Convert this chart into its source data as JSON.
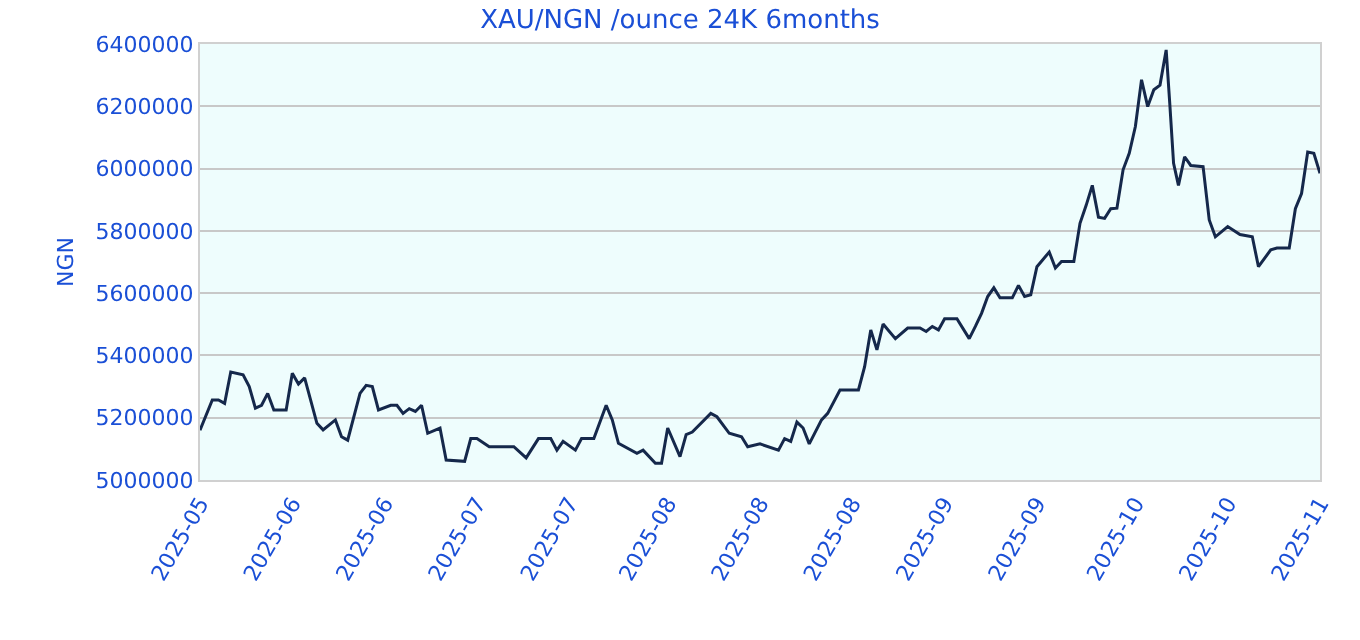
{
  "chart_data": {
    "type": "line",
    "title": "XAU/NGN /ounce 24K 6months",
    "ylabel": "NGN",
    "x": [
      "2025-05-17",
      "2025-05-19",
      "2025-05-20",
      "2025-05-21",
      "2025-05-22",
      "2025-05-24",
      "2025-05-25",
      "2025-05-26",
      "2025-05-27",
      "2025-05-28",
      "2025-05-29",
      "2025-05-31",
      "2025-06-01",
      "2025-06-02",
      "2025-06-03",
      "2025-06-05",
      "2025-06-06",
      "2025-06-08",
      "2025-06-09",
      "2025-06-10",
      "2025-06-12",
      "2025-06-13",
      "2025-06-14",
      "2025-06-15",
      "2025-06-17",
      "2025-06-18",
      "2025-06-19",
      "2025-06-20",
      "2025-06-21",
      "2025-06-22",
      "2025-06-23",
      "2025-06-25",
      "2025-06-26",
      "2025-06-29",
      "2025-06-30",
      "2025-07-01",
      "2025-07-03",
      "2025-07-07",
      "2025-07-09",
      "2025-07-11",
      "2025-07-13",
      "2025-07-14",
      "2025-07-15",
      "2025-07-17",
      "2025-07-18",
      "2025-07-20",
      "2025-07-22",
      "2025-07-23",
      "2025-07-24",
      "2025-07-27",
      "2025-07-28",
      "2025-07-30",
      "2025-07-31",
      "2025-08-01",
      "2025-08-03",
      "2025-08-04",
      "2025-08-05",
      "2025-08-08",
      "2025-08-09",
      "2025-08-11",
      "2025-08-13",
      "2025-08-14",
      "2025-08-16",
      "2025-08-19",
      "2025-08-20",
      "2025-08-21",
      "2025-08-22",
      "2025-08-23",
      "2025-08-24",
      "2025-08-26",
      "2025-08-27",
      "2025-08-29",
      "2025-09-01",
      "2025-09-02",
      "2025-09-03",
      "2025-09-04",
      "2025-09-05",
      "2025-09-07",
      "2025-09-09",
      "2025-09-11",
      "2025-09-12",
      "2025-09-13",
      "2025-09-14",
      "2025-09-15",
      "2025-09-17",
      "2025-09-19",
      "2025-09-20",
      "2025-09-21",
      "2025-09-22",
      "2025-09-23",
      "2025-09-24",
      "2025-09-26",
      "2025-09-27",
      "2025-09-28",
      "2025-09-29",
      "2025-09-30",
      "2025-10-02",
      "2025-10-03",
      "2025-10-04",
      "2025-10-06",
      "2025-10-07",
      "2025-10-08",
      "2025-10-09",
      "2025-10-10",
      "2025-10-11",
      "2025-10-12",
      "2025-10-13",
      "2025-10-14",
      "2025-10-15",
      "2025-10-16",
      "2025-10-17",
      "2025-10-18",
      "2025-10-19",
      "2025-10-20",
      "2025-10-21",
      "2025-10-21T14:00",
      "2025-10-22T05:00",
      "2025-10-23",
      "2025-10-24",
      "2025-10-25",
      "2025-10-27",
      "2025-10-28",
      "2025-10-29",
      "2025-10-31",
      "2025-11-02",
      "2025-11-04",
      "2025-11-05",
      "2025-11-07",
      "2025-11-08",
      "2025-11-10",
      "2025-11-11",
      "2025-11-12",
      "2025-11-13",
      "2025-11-14",
      "2025-11-15"
    ],
    "series": [
      {
        "color": "#15284b",
        "values": [
          5160000,
          5257000,
          5257000,
          5246000,
          5347000,
          5338000,
          5300000,
          5231000,
          5240000,
          5278000,
          5225000,
          5225000,
          5343000,
          5308000,
          5328000,
          5182000,
          5161000,
          5193000,
          5139000,
          5128000,
          5278000,
          5304000,
          5300000,
          5225000,
          5240000,
          5240000,
          5214000,
          5229000,
          5220000,
          5240000,
          5150000,
          5167000,
          5064000,
          5060000,
          5133000,
          5133000,
          5107000,
          5107000,
          5071000,
          5133000,
          5133000,
          5096000,
          5124000,
          5096000,
          5133000,
          5133000,
          5240000,
          5193000,
          5118000,
          5086000,
          5096000,
          5054000,
          5054000,
          5167000,
          5075000,
          5146000,
          5154000,
          5214000,
          5203000,
          5150000,
          5139000,
          5107000,
          5116000,
          5096000,
          5133000,
          5124000,
          5186000,
          5167000,
          5116000,
          5193000,
          5214000,
          5289000,
          5289000,
          5364000,
          5482000,
          5418000,
          5501000,
          5454000,
          5488000,
          5488000,
          5477000,
          5493000,
          5482000,
          5518000,
          5518000,
          5454000,
          5493000,
          5535000,
          5589000,
          5617000,
          5585000,
          5585000,
          5625000,
          5589000,
          5595000,
          5685000,
          5732000,
          5681000,
          5702000,
          5702000,
          5824000,
          5882000,
          5946000,
          5844000,
          5840000,
          5871000,
          5873000,
          5996000,
          6049000,
          6135000,
          6285000,
          6199000,
          6253000,
          6268000,
          6381000,
          6210000,
          6017000,
          5946000,
          6038000,
          6010000,
          6006000,
          5835000,
          5781000,
          5814000,
          5788000,
          5781000,
          5685000,
          5739000,
          5745000,
          5745000,
          5871000,
          5920000,
          6053000,
          6049000,
          5985000
        ]
      }
    ],
    "xlim": [
      "2025-05-17",
      "2025-11-15"
    ],
    "ylim": [
      5000000,
      6400000
    ],
    "xticks": [
      {
        "value": "2025-05-17",
        "label": "2025-05"
      },
      {
        "value": "2025-06-01",
        "label": "2025-06"
      },
      {
        "value": "2025-06-16",
        "label": "2025-06"
      },
      {
        "value": "2025-07-01",
        "label": "2025-07"
      },
      {
        "value": "2025-07-16",
        "label": "2025-07"
      },
      {
        "value": "2025-08-01",
        "label": "2025-08"
      },
      {
        "value": "2025-08-16",
        "label": "2025-08"
      },
      {
        "value": "2025-08-31",
        "label": "2025-08"
      },
      {
        "value": "2025-09-15",
        "label": "2025-09"
      },
      {
        "value": "2025-09-30",
        "label": "2025-09"
      },
      {
        "value": "2025-10-16",
        "label": "2025-10"
      },
      {
        "value": "2025-10-31",
        "label": "2025-10"
      },
      {
        "value": "2025-11-15",
        "label": "2025-11"
      }
    ],
    "yticks": [
      5000000,
      5200000,
      5400000,
      5600000,
      5800000,
      6000000,
      6200000,
      6400000
    ],
    "grid": "y",
    "marker": "none",
    "line_style": "solid"
  }
}
